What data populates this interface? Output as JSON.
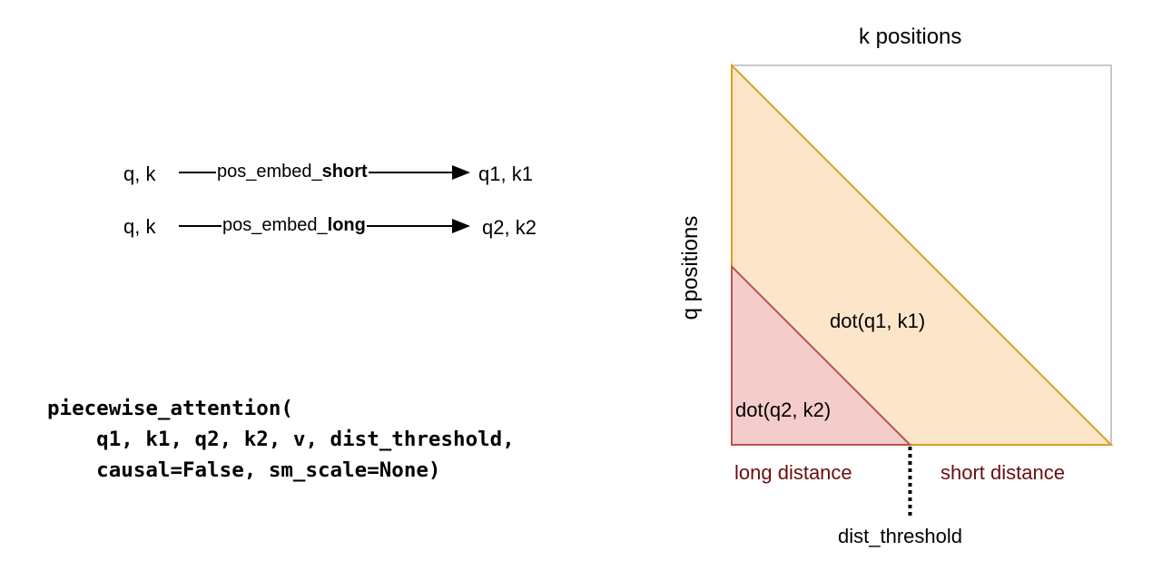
{
  "pipelines": [
    {
      "input": "q, k",
      "op_prefix": "pos_embed_",
      "op_suffix": "short",
      "output": "q1, k1"
    },
    {
      "input": "q, k",
      "op_prefix": "pos_embed_",
      "op_suffix": "long",
      "output": "q2, k2"
    }
  ],
  "code": {
    "line1": "piecewise_attention(",
    "line2": "    q1, k1, q2, k2, v, dist_threshold,",
    "line3": "    causal=False, sm_scale=None)"
  },
  "matrix": {
    "x_axis_label": "k positions",
    "y_axis_label": "q positions",
    "short_region_label": "dot(q1, k1)",
    "long_region_label": "dot(q2, k2)",
    "long_distance_label": "long distance",
    "short_distance_label": "short distance",
    "threshold_label": "dist_threshold",
    "dist_threshold_fraction": 0.47
  },
  "colors": {
    "short_fill": "#fde5c9",
    "short_stroke": "#d6a21e",
    "long_fill": "#f5cccc",
    "long_stroke": "#b85450",
    "border": "#c8c8c8",
    "region_text": "#6b0e0e"
  }
}
